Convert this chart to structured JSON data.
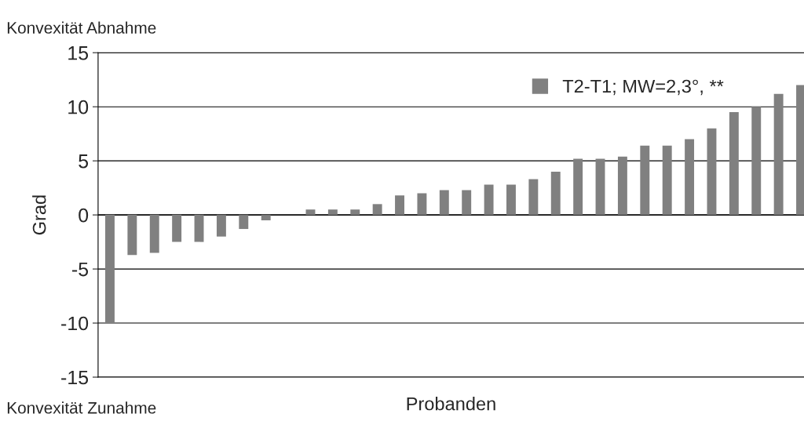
{
  "chart_data": {
    "type": "bar",
    "xlabel": "Probanden",
    "ylabel": "Grad",
    "annotations": [
      "Konvexität Abnahme",
      "Konvexität Zunahme"
    ],
    "categories": [
      null,
      null,
      null,
      null,
      null,
      null,
      null,
      null,
      null,
      null,
      null,
      null,
      null,
      null,
      null,
      null,
      null,
      null,
      null,
      null,
      null,
      null,
      null,
      null,
      null,
      null,
      null,
      null,
      null,
      null,
      null,
      null
    ],
    "series": [
      {
        "name": "T2-T1; MW=2,3°, **",
        "color": "#808080",
        "values": [
          -10,
          -3.7,
          -3.5,
          -2.5,
          -2.5,
          -2.0,
          -1.3,
          -0.5,
          null,
          0.5,
          0.5,
          0.5,
          1.0,
          1.8,
          2.0,
          2.3,
          2.3,
          2.8,
          2.8,
          3.3,
          4.0,
          5.2,
          5.2,
          5.4,
          6.4,
          6.4,
          7.0,
          8.0,
          9.5,
          10.0,
          11.2,
          12.0
        ]
      }
    ],
    "ylim": [
      -15,
      15
    ],
    "yticks": [
      -15,
      -10,
      -5,
      0,
      5,
      10,
      15
    ],
    "grid": "y",
    "legend": "top right",
    "tick_labels": "y"
  }
}
